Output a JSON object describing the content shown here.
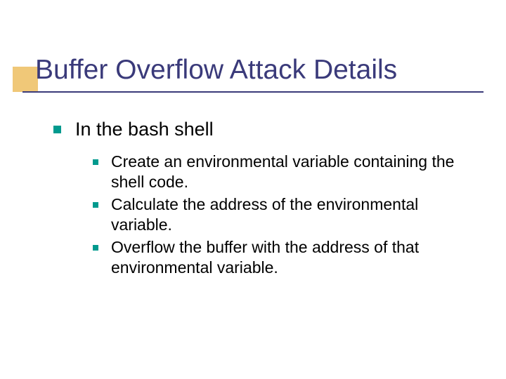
{
  "accent_color": "#f0c878",
  "title_color": "#3a3a7a",
  "bullet_color": "#009a8e",
  "underline_color": "#3a3a7a",
  "background_color": "#ffffff",
  "text_color": "#000000",
  "title": "Buffer Overflow Attack Details",
  "title_fontsize": 39,
  "level1_fontsize": 27,
  "level2_fontsize": 23,
  "level1": {
    "text": "In the bash shell",
    "sub": [
      "Create an environmental variable containing the shell code.",
      "Calculate the address of the environmental variable.",
      "Overflow the buffer with the address of that environmental variable."
    ]
  }
}
